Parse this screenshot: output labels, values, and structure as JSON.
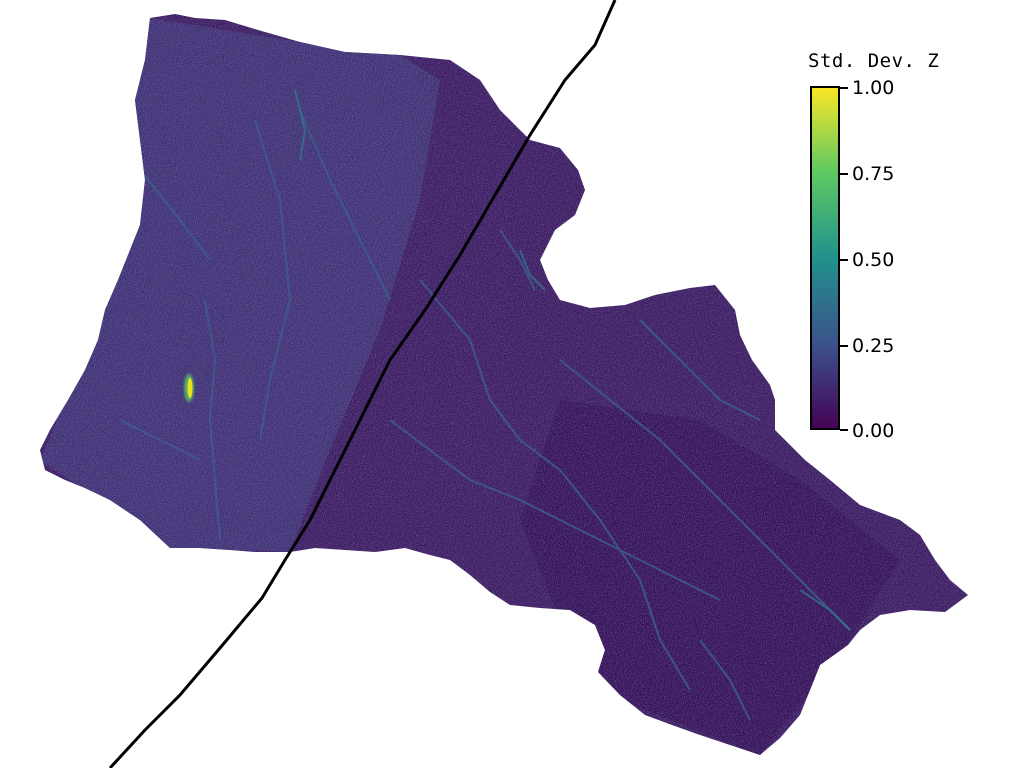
{
  "legend": {
    "title": "Std. Dev. Z",
    "ticks": [
      "1.00",
      "0.75",
      "0.50",
      "0.25",
      "0.00"
    ],
    "min": 0.0,
    "max": 1.0,
    "colormap": [
      "#440154",
      "#3b528b",
      "#21918c",
      "#5ec962",
      "#fde725"
    ]
  },
  "map": {
    "background_color": "#ffffff",
    "basin_fill": "#3b1c5f",
    "line_color": "#000000",
    "hotspot_color": "#e8e419"
  }
}
